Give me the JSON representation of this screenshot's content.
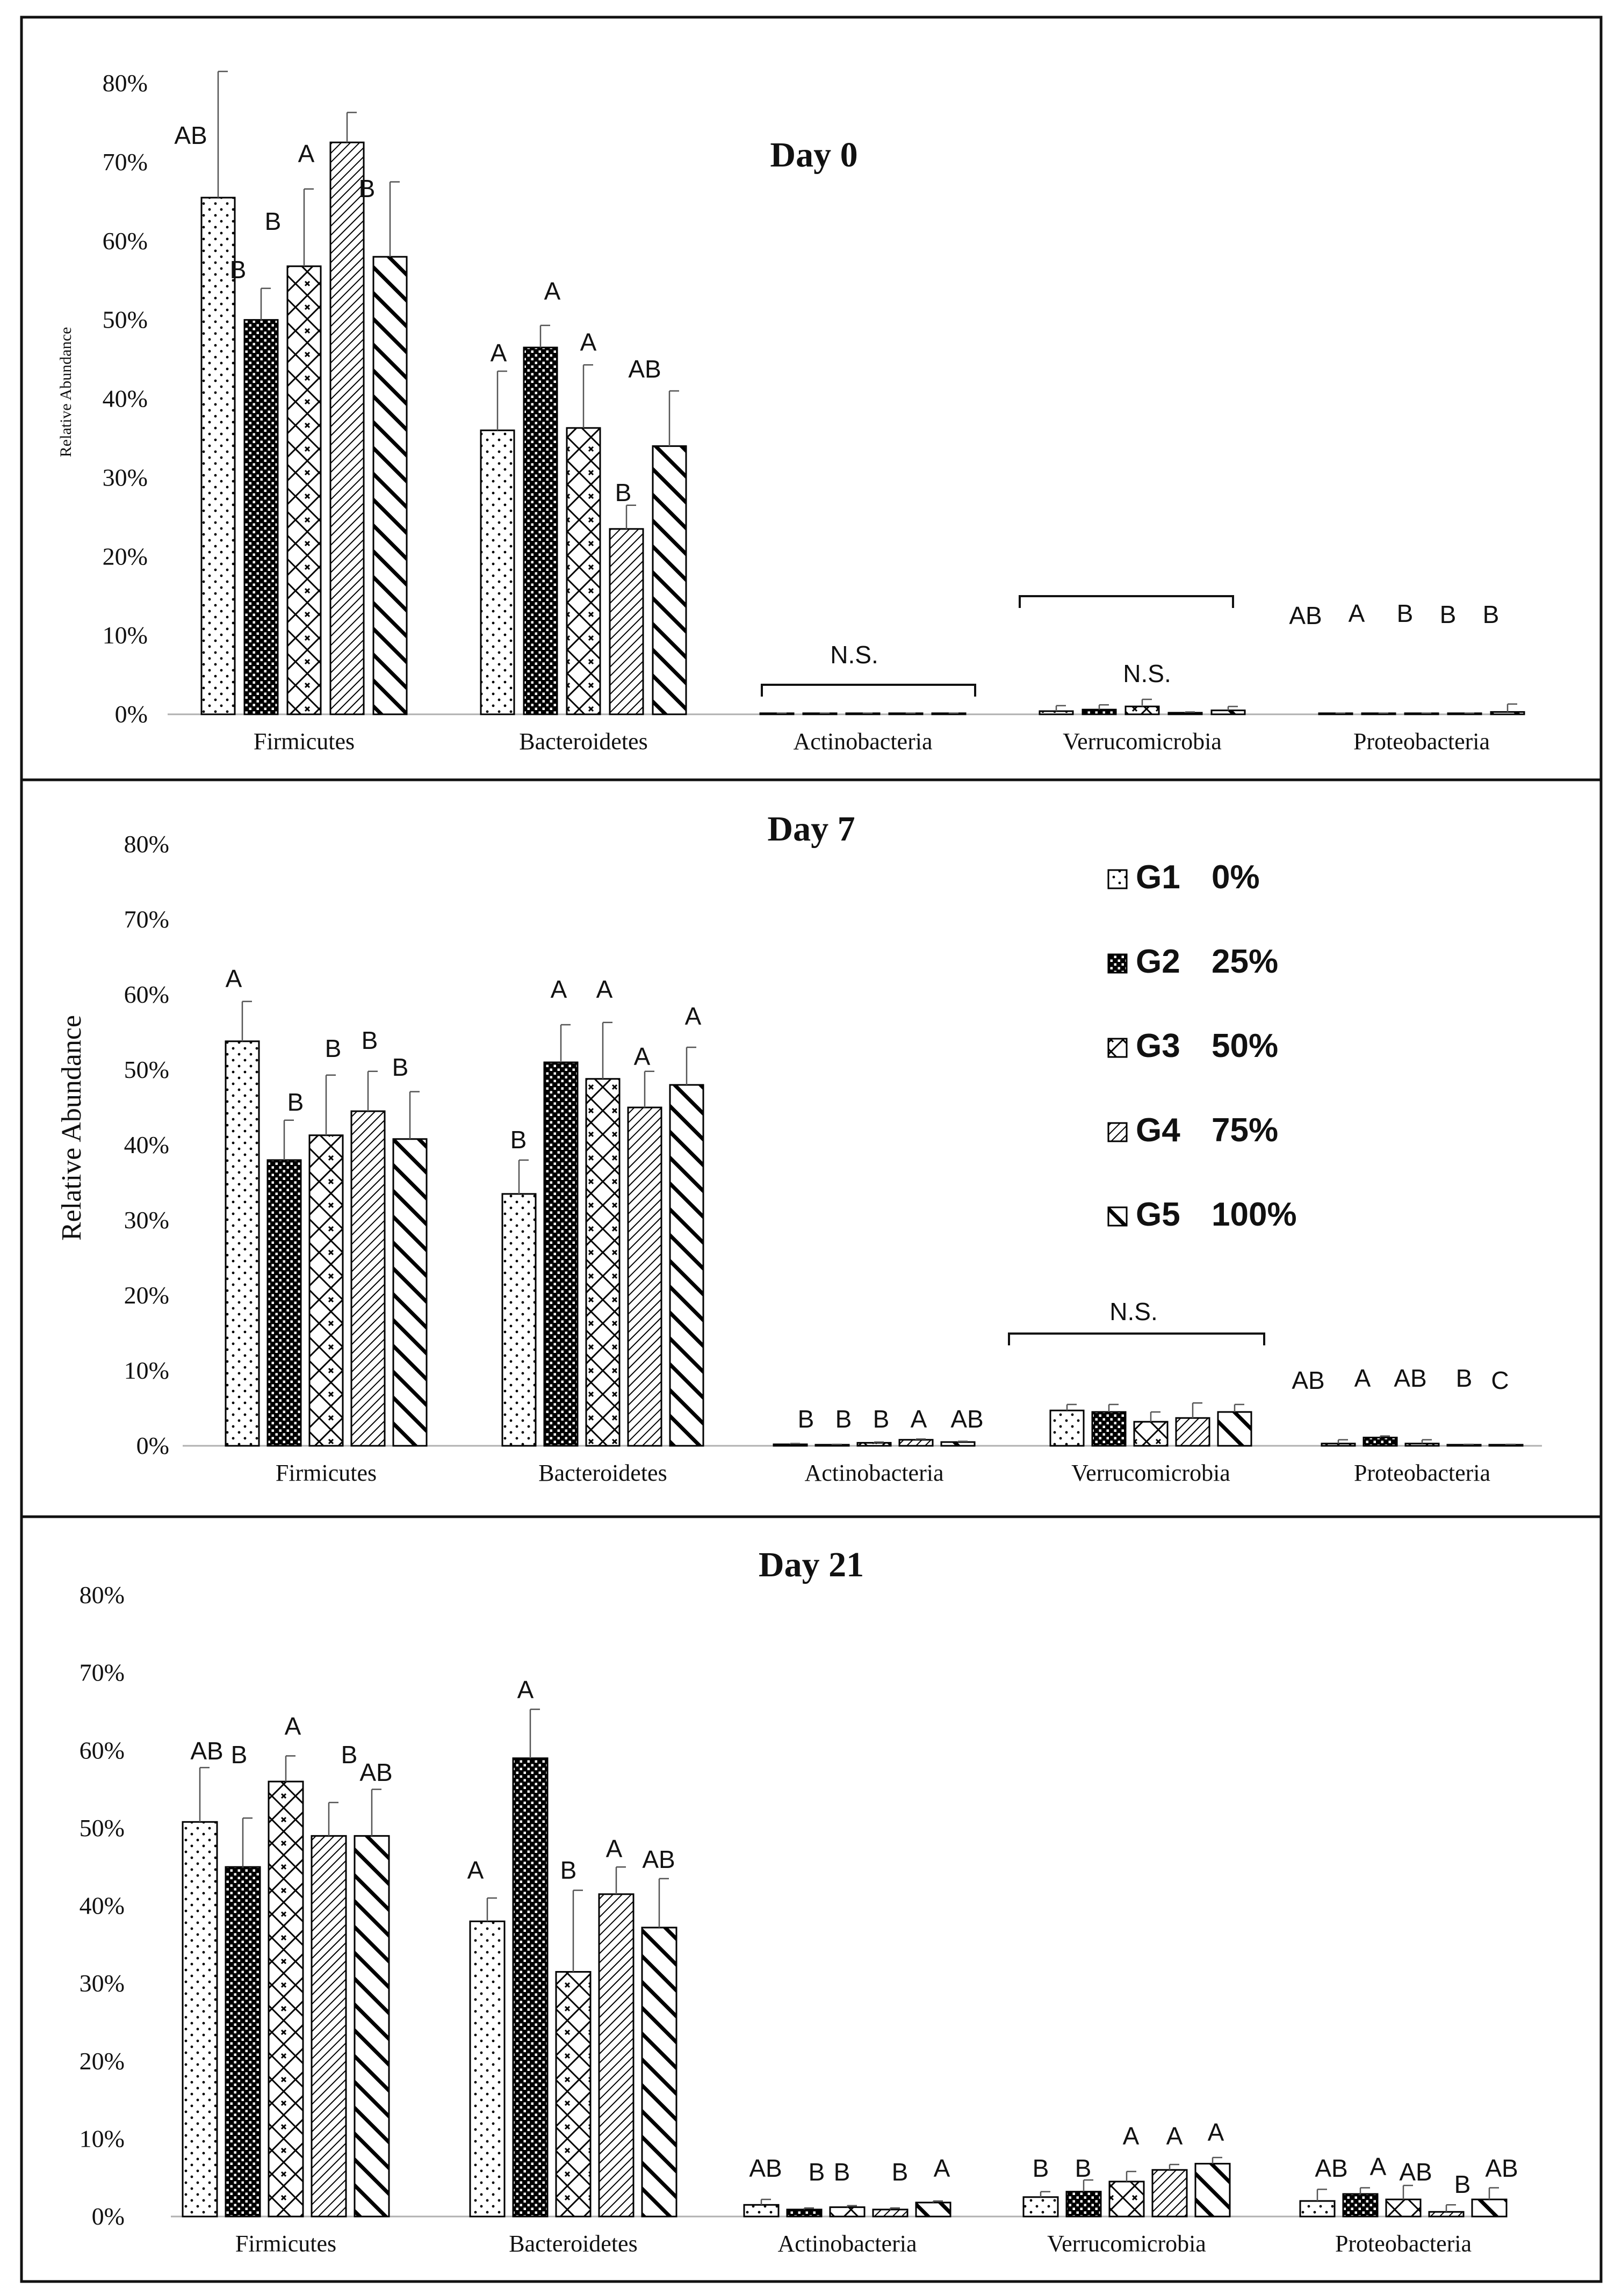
{
  "chart_data": [
    {
      "type": "bar",
      "title": "Day 0",
      "ylabel": "Relative Abundance",
      "ylim": [
        0,
        80
      ],
      "yticks": [
        "0%",
        "10%",
        "20%",
        "30%",
        "40%",
        "50%",
        "60%",
        "70%",
        "80%"
      ],
      "categories": [
        "Firmicutes",
        "Bacteroidetes",
        "Actinobacteria",
        "Verrucomicrobia",
        "Proteobacteria"
      ],
      "series": [
        {
          "name": "G1 0%",
          "values": [
            65.5,
            36.0,
            0.1,
            0.4,
            0.1
          ],
          "errors": [
            16.0,
            7.5,
            0.05,
            0.7,
            0.05
          ]
        },
        {
          "name": "G2 25%",
          "values": [
            50.0,
            46.5,
            0.1,
            0.6,
            0.1
          ],
          "errors": [
            4.0,
            2.8,
            0.05,
            0.6,
            0.05
          ]
        },
        {
          "name": "G3 50%",
          "values": [
            56.8,
            36.3,
            0.1,
            1.0,
            0.1
          ],
          "errors": [
            9.8,
            8.0,
            0.05,
            0.9,
            0.05
          ]
        },
        {
          "name": "G4 75%",
          "values": [
            72.5,
            23.5,
            0.1,
            0.2,
            0.1
          ],
          "errors": [
            3.8,
            3.0,
            0.05,
            0.1,
            0.05
          ]
        },
        {
          "name": "G5 100%",
          "values": [
            58.0,
            34.0,
            0.1,
            0.5,
            0.3
          ],
          "errors": [
            9.5,
            7.0,
            0.05,
            0.5,
            1.0
          ]
        }
      ],
      "significance": [
        [
          "AB",
          "B",
          "B",
          "A",
          "B"
        ],
        [
          "A",
          "A",
          "A",
          "B",
          "AB"
        ],
        [
          "",
          "",
          "",
          "",
          ""
        ],
        [
          "",
          "",
          "",
          "",
          ""
        ],
        [
          "AB",
          "A",
          "B",
          "B",
          "B"
        ]
      ],
      "ns_labels": [
        "N.S.",
        "N.S."
      ]
    },
    {
      "type": "bar",
      "title": "Day 7",
      "ylabel": "Relative Abundance",
      "ylim": [
        0,
        80
      ],
      "yticks": [
        "0%",
        "10%",
        "20%",
        "30%",
        "40%",
        "50%",
        "60%",
        "70%",
        "80%"
      ],
      "categories": [
        "Firmicutes",
        "Bacteroidetes",
        "Actinobacteria",
        "Verrucomicrobia",
        "Proteobacteria"
      ],
      "series": [
        {
          "name": "G1 0%",
          "values": [
            53.8,
            33.5,
            0.2,
            4.7,
            0.3
          ],
          "errors": [
            5.3,
            4.5,
            0.1,
            0.8,
            0.5
          ]
        },
        {
          "name": "G2 25%",
          "values": [
            38.0,
            51.0,
            0.1,
            4.5,
            1.1
          ],
          "errors": [
            5.3,
            5.0,
            0.1,
            1.0,
            0.2
          ]
        },
        {
          "name": "G3 50%",
          "values": [
            41.3,
            48.8,
            0.4,
            3.2,
            0.3
          ],
          "errors": [
            8.0,
            7.5,
            0.1,
            1.3,
            0.5
          ]
        },
        {
          "name": "G4 75%",
          "values": [
            44.5,
            45.0,
            0.8,
            3.7,
            0.1
          ],
          "errors": [
            5.3,
            4.8,
            0.1,
            2.0,
            0.1
          ]
        },
        {
          "name": "G5 100%",
          "values": [
            40.8,
            48.0,
            0.5,
            4.5,
            0.1
          ],
          "errors": [
            6.3,
            5.0,
            0.1,
            1.0,
            0.1
          ]
        }
      ],
      "significance": [
        [
          "A",
          "B",
          "B",
          "B",
          "B"
        ],
        [
          "B",
          "A",
          "A",
          "A",
          "A"
        ],
        [
          "B",
          "B",
          "B",
          "A",
          "AB"
        ],
        [
          "",
          "",
          "",
          "",
          ""
        ],
        [
          "AB",
          "A",
          "AB",
          "B",
          "C"
        ]
      ],
      "ns_labels": [
        "N.S."
      ],
      "legend": [
        {
          "code": "G1",
          "pct": "0%"
        },
        {
          "code": "G2",
          "pct": "25%"
        },
        {
          "code": "G3",
          "pct": "50%"
        },
        {
          "code": "G4",
          "pct": "75%"
        },
        {
          "code": "G5",
          "pct": "100%"
        }
      ]
    },
    {
      "type": "bar",
      "title": "Day 21",
      "ylim": [
        0,
        80
      ],
      "yticks": [
        "0%",
        "10%",
        "20%",
        "30%",
        "40%",
        "50%",
        "60%",
        "70%",
        "80%"
      ],
      "categories": [
        "Firmicutes",
        "Bacteroidetes",
        "Actinobacteria",
        "Verrucomicrobia",
        "Proteobacteria"
      ],
      "series": [
        {
          "name": "G1 0%",
          "values": [
            50.8,
            38.0,
            1.5,
            2.5,
            2.0
          ],
          "errors": [
            7.0,
            3.0,
            0.7,
            0.7,
            1.5
          ]
        },
        {
          "name": "G2 25%",
          "values": [
            45.0,
            59.0,
            0.9,
            3.2,
            2.9
          ],
          "errors": [
            6.3,
            6.3,
            0.2,
            1.5,
            0.8
          ]
        },
        {
          "name": "G3 50%",
          "values": [
            56.0,
            31.5,
            1.2,
            4.5,
            2.2
          ],
          "errors": [
            3.3,
            10.5,
            0.2,
            1.3,
            1.8
          ]
        },
        {
          "name": "G4 75%",
          "values": [
            49.0,
            41.5,
            0.9,
            6.0,
            0.6
          ],
          "errors": [
            4.3,
            3.5,
            0.2,
            0.7,
            0.9
          ]
        },
        {
          "name": "G5 100%",
          "values": [
            49.0,
            37.2,
            1.8,
            6.8,
            2.2
          ],
          "errors": [
            6.0,
            6.3,
            0.2,
            0.8,
            1.5
          ]
        }
      ],
      "significance": [
        [
          "AB",
          "B",
          "A",
          "B",
          "AB"
        ],
        [
          "A",
          "A",
          "B",
          "A",
          "AB"
        ],
        [
          "AB",
          "B",
          "B",
          "B",
          "A"
        ],
        [
          "B",
          "B",
          "A",
          "A",
          "A"
        ],
        [
          "AB",
          "A",
          "AB",
          "B",
          "AB"
        ]
      ]
    }
  ]
}
